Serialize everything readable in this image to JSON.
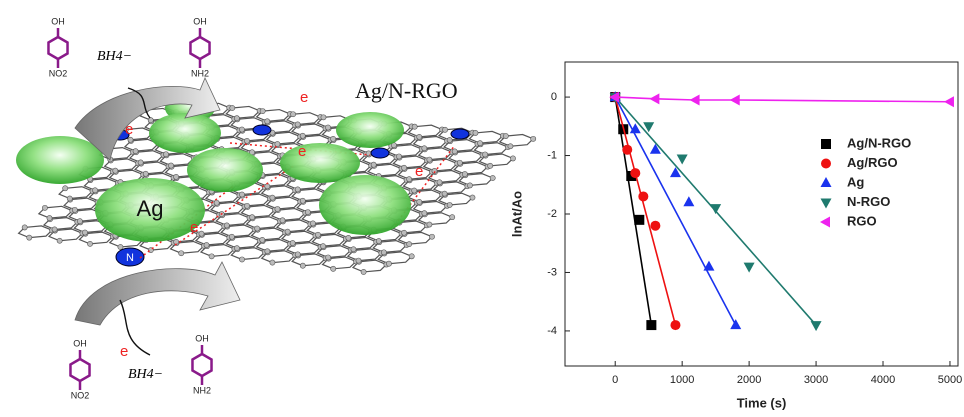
{
  "schematic": {
    "title": "Ag/N-RGO",
    "particle": "Ag",
    "electron": "e",
    "dopant": "N",
    "reductant": "BH4−",
    "hydroxyl": "OH",
    "nitro": "NO2",
    "amino": "NH2"
  },
  "chart_data": {
    "type": "scatter",
    "xlabel": "Time (s)",
    "ylabel": "lnAt/Ao",
    "xlim": [
      -750,
      5120
    ],
    "ylim": [
      -4.6,
      0.6
    ],
    "xticks": [
      0,
      1000,
      2000,
      3000,
      4000,
      5000
    ],
    "yticks": [
      0,
      -1,
      -2,
      -3,
      -4
    ],
    "legend": "right",
    "series": [
      {
        "name": "Ag/N-RGO",
        "color": "#000000",
        "marker": "square",
        "x": [
          0,
          120,
          240,
          360,
          540
        ],
        "values": [
          0,
          -0.55,
          -1.35,
          -2.1,
          -3.9
        ]
      },
      {
        "name": "Ag/RGO",
        "color": "#ee1111",
        "marker": "circle",
        "x": [
          0,
          180,
          300,
          420,
          600,
          900
        ],
        "values": [
          0,
          -0.9,
          -1.3,
          -1.7,
          -2.2,
          -3.9
        ]
      },
      {
        "name": "Ag",
        "color": "#1a33ee",
        "marker": "triangle-up",
        "x": [
          0,
          300,
          600,
          900,
          1100,
          1400,
          1800
        ],
        "values": [
          0,
          -0.55,
          -0.9,
          -1.3,
          -1.8,
          -2.9,
          -3.9
        ]
      },
      {
        "name": "N-RGO",
        "color": "#1f7a6e",
        "marker": "triangle-down",
        "x": [
          0,
          500,
          1000,
          1500,
          2000,
          3000
        ],
        "values": [
          0,
          -0.5,
          -1.05,
          -1.9,
          -2.9,
          -3.9
        ]
      },
      {
        "name": "RGO",
        "color": "#ee22ee",
        "marker": "triangle-left",
        "x": [
          0,
          600,
          1200,
          1800,
          5000
        ],
        "values": [
          0,
          -0.03,
          -0.05,
          -0.05,
          -0.08
        ]
      }
    ]
  }
}
